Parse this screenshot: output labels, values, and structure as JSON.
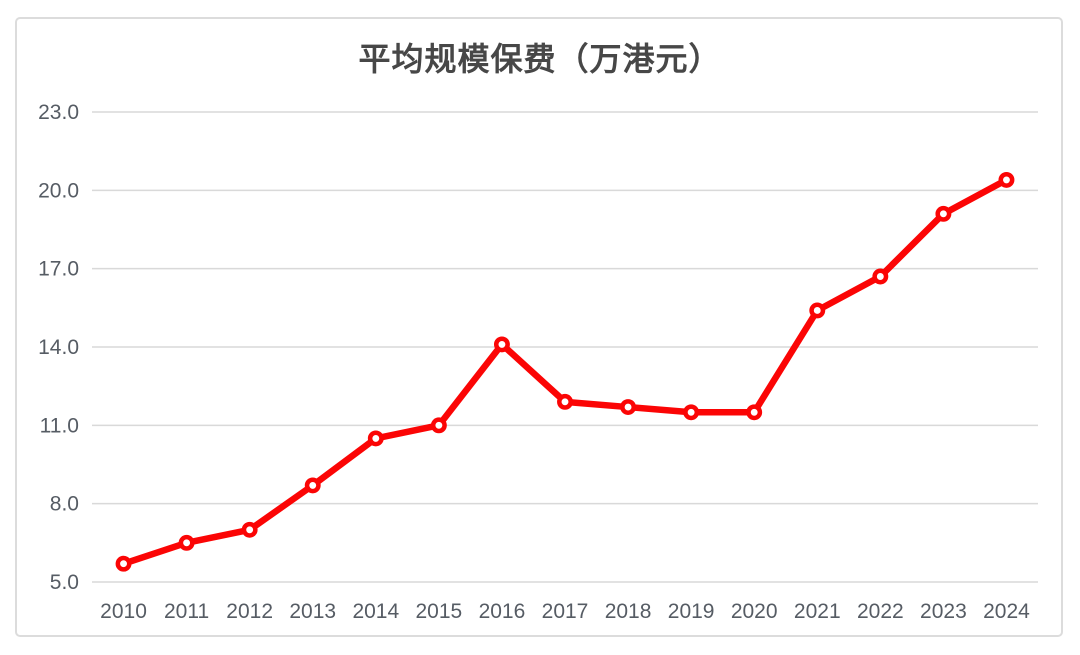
{
  "card": {
    "background": "#ffffff",
    "border_color": "#dcdcdc"
  },
  "chart_data": {
    "type": "line",
    "title": "平均规模保费（万港元）",
    "categories": [
      "2010",
      "2011",
      "2012",
      "2013",
      "2014",
      "2015",
      "2016",
      "2017",
      "2018",
      "2019",
      "2020",
      "2021",
      "2022",
      "2023",
      "2024"
    ],
    "series": [
      {
        "values": [
          5.7,
          6.5,
          7.0,
          8.7,
          10.5,
          11.0,
          14.1,
          11.9,
          11.7,
          11.5,
          11.5,
          15.4,
          16.7,
          19.1,
          20.4
        ],
        "color": "#fb0505",
        "marker": "open-circle"
      }
    ],
    "xlabel": "",
    "ylabel": "",
    "ylim": [
      5.0,
      23.0
    ],
    "yticks": [
      5.0,
      8.0,
      11.0,
      14.0,
      17.0,
      20.0,
      23.0
    ],
    "ytick_labels": [
      "5.0",
      "8.0",
      "11.0",
      "14.0",
      "17.0",
      "20.0",
      "23.0"
    ],
    "grid": "horizontal",
    "gridline_color": "#d9d9d9",
    "axis_label_color": "#565c64",
    "title_color": "#474747",
    "legend": "none"
  }
}
